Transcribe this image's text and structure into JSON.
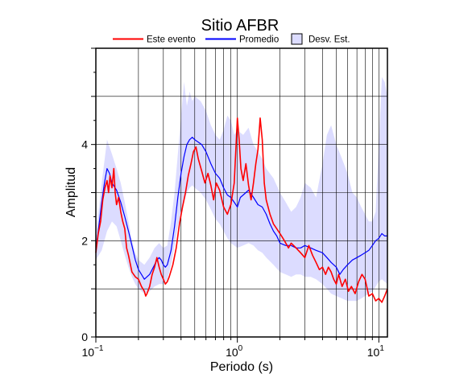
{
  "chart_data": {
    "type": "line",
    "title": "Sitio AFBR",
    "xlabel": "Periodo (s)",
    "ylabel": "Amplitud",
    "x_scale": "log",
    "xlim": [
      0.1,
      11.5
    ],
    "ylim": [
      0,
      6
    ],
    "grid": true,
    "legend_position": "top",
    "x_ticks": [
      {
        "value": 0.1,
        "base": "10",
        "exp": "−1"
      },
      {
        "value": 1,
        "base": "10",
        "exp": "0"
      },
      {
        "value": 10,
        "base": "10",
        "exp": "1"
      }
    ],
    "y_ticks": [
      {
        "value": 0,
        "label": "0"
      },
      {
        "value": 2,
        "label": "2"
      },
      {
        "value": 4,
        "label": "4"
      }
    ],
    "series": [
      {
        "name": "Este evento",
        "color": "#ff0000",
        "x": [
          0.1,
          0.104,
          0.108,
          0.112,
          0.116,
          0.12,
          0.123,
          0.126,
          0.13,
          0.134,
          0.137,
          0.14,
          0.145,
          0.15,
          0.155,
          0.16,
          0.165,
          0.17,
          0.18,
          0.19,
          0.2,
          0.21,
          0.22,
          0.225,
          0.23,
          0.24,
          0.25,
          0.26,
          0.27,
          0.28,
          0.29,
          0.3,
          0.31,
          0.32,
          0.33,
          0.35,
          0.37,
          0.39,
          0.41,
          0.43,
          0.45,
          0.47,
          0.49,
          0.51,
          0.53,
          0.56,
          0.59,
          0.62,
          0.65,
          0.68,
          0.71,
          0.75,
          0.8,
          0.85,
          0.9,
          0.95,
          1.0,
          1.03,
          1.06,
          1.1,
          1.15,
          1.2,
          1.25,
          1.3,
          1.35,
          1.4,
          1.45,
          1.5,
          1.55,
          1.6,
          1.7,
          1.8,
          1.9,
          2.0,
          2.1,
          2.2,
          2.3,
          2.4,
          2.6,
          2.8,
          3.0,
          3.2,
          3.4,
          3.6,
          3.8,
          4.0,
          4.2,
          4.4,
          4.6,
          4.8,
          5.0,
          5.2,
          5.5,
          5.8,
          6.1,
          6.4,
          6.8,
          7.2,
          7.6,
          8.0,
          8.5,
          9.0,
          9.5,
          10.0,
          10.5,
          11.0,
          11.5
        ],
        "values": [
          1.75,
          2.15,
          2.4,
          2.85,
          3.1,
          3.25,
          3.0,
          3.35,
          3.1,
          3.5,
          3.0,
          2.75,
          2.9,
          2.6,
          2.4,
          2.25,
          1.85,
          1.7,
          1.35,
          1.25,
          1.2,
          1.05,
          0.95,
          0.85,
          0.9,
          1.05,
          1.3,
          1.45,
          1.65,
          1.45,
          1.3,
          1.2,
          1.1,
          1.15,
          1.25,
          1.5,
          1.85,
          2.35,
          2.7,
          3.0,
          3.35,
          3.6,
          3.85,
          3.95,
          3.7,
          3.45,
          3.2,
          3.4,
          3.15,
          2.85,
          3.2,
          3.05,
          2.7,
          2.55,
          2.75,
          3.2,
          4.55,
          4.1,
          3.5,
          3.25,
          3.6,
          3.15,
          2.85,
          3.2,
          3.6,
          3.9,
          4.55,
          4.1,
          3.2,
          2.85,
          2.55,
          2.35,
          2.25,
          2.15,
          2.05,
          1.95,
          1.85,
          1.95,
          1.85,
          1.75,
          1.65,
          1.9,
          1.7,
          1.55,
          1.4,
          1.45,
          1.3,
          1.45,
          1.35,
          1.2,
          1.1,
          1.3,
          1.05,
          1.2,
          0.95,
          1.05,
          0.9,
          1.15,
          1.3,
          1.2,
          0.85,
          0.9,
          0.75,
          0.8,
          0.72,
          0.85,
          1.0
        ]
      },
      {
        "name": "Promedio",
        "color": "#0000ff",
        "x": [
          0.1,
          0.105,
          0.11,
          0.115,
          0.12,
          0.125,
          0.13,
          0.14,
          0.15,
          0.16,
          0.17,
          0.18,
          0.19,
          0.2,
          0.21,
          0.22,
          0.23,
          0.24,
          0.25,
          0.26,
          0.27,
          0.28,
          0.29,
          0.3,
          0.31,
          0.32,
          0.34,
          0.36,
          0.38,
          0.4,
          0.42,
          0.44,
          0.46,
          0.48,
          0.5,
          0.53,
          0.56,
          0.6,
          0.65,
          0.7,
          0.75,
          0.8,
          0.85,
          0.9,
          0.95,
          1.0,
          1.05,
          1.1,
          1.2,
          1.3,
          1.4,
          1.5,
          1.6,
          1.7,
          1.8,
          1.9,
          2.0,
          2.2,
          2.4,
          2.6,
          2.8,
          3.0,
          3.3,
          3.6,
          4.0,
          4.3,
          4.6,
          5.0,
          5.3,
          5.6,
          6.0,
          6.5,
          7.0,
          7.5,
          8.0,
          8.5,
          9.0,
          9.5,
          10.0,
          10.5,
          11.0,
          11.5
        ],
        "values": [
          1.8,
          2.3,
          2.8,
          3.2,
          3.5,
          3.4,
          3.2,
          3.05,
          2.8,
          2.5,
          2.2,
          1.9,
          1.6,
          1.4,
          1.3,
          1.2,
          1.25,
          1.3,
          1.4,
          1.5,
          1.6,
          1.65,
          1.6,
          1.5,
          1.45,
          1.5,
          1.8,
          2.3,
          2.9,
          3.4,
          3.75,
          4.0,
          4.1,
          4.15,
          4.1,
          4.05,
          4.0,
          3.85,
          3.6,
          3.4,
          3.3,
          3.1,
          2.95,
          2.9,
          2.8,
          2.7,
          2.9,
          2.95,
          3.05,
          2.9,
          2.75,
          2.7,
          2.55,
          2.35,
          2.2,
          2.1,
          1.95,
          1.9,
          1.9,
          1.85,
          1.85,
          1.9,
          1.85,
          1.8,
          1.75,
          1.65,
          1.55,
          1.45,
          1.3,
          1.4,
          1.5,
          1.6,
          1.65,
          1.7,
          1.75,
          1.8,
          1.9,
          2.0,
          2.05,
          2.15,
          2.1,
          2.1
        ]
      },
      {
        "name": "Desv. Est.",
        "color": "#dcdcff",
        "x": [
          0.1,
          0.11,
          0.12,
          0.13,
          0.14,
          0.15,
          0.16,
          0.17,
          0.18,
          0.19,
          0.2,
          0.22,
          0.24,
          0.26,
          0.28,
          0.3,
          0.32,
          0.34,
          0.36,
          0.38,
          0.4,
          0.42,
          0.44,
          0.46,
          0.48,
          0.5,
          0.55,
          0.6,
          0.65,
          0.7,
          0.75,
          0.8,
          0.85,
          0.9,
          0.95,
          1.0,
          1.1,
          1.2,
          1.3,
          1.4,
          1.5,
          1.6,
          1.8,
          2.0,
          2.2,
          2.4,
          2.6,
          2.8,
          3.0,
          3.3,
          3.6,
          4.0,
          4.3,
          4.6,
          5.0,
          5.5,
          6.0,
          6.5,
          7.0,
          7.5,
          8.0,
          8.5,
          9.0,
          9.5,
          10.0,
          10.5,
          11.0,
          11.5
        ],
        "upper": [
          2.1,
          3.2,
          4.1,
          3.8,
          3.5,
          3.2,
          2.8,
          2.4,
          2.0,
          1.75,
          1.6,
          1.5,
          1.65,
          1.85,
          1.95,
          1.85,
          1.9,
          2.4,
          3.0,
          3.8,
          4.6,
          5.3,
          4.8,
          5.1,
          4.9,
          5.0,
          4.9,
          4.7,
          4.4,
          4.2,
          4.1,
          4.3,
          4.6,
          4.5,
          4.2,
          4.3,
          4.2,
          4.35,
          4.0,
          3.85,
          3.7,
          3.5,
          3.3,
          3.0,
          2.8,
          2.6,
          2.7,
          2.9,
          3.2,
          3.1,
          2.9,
          3.6,
          4.2,
          4.4,
          4.0,
          3.7,
          3.4,
          3.0,
          2.9,
          2.7,
          2.55,
          2.4,
          2.4,
          2.6,
          4.0,
          5.4,
          5.3,
          5.0
        ],
        "lower": [
          1.6,
          1.8,
          2.2,
          2.4,
          2.3,
          2.0,
          1.7,
          1.45,
          1.25,
          1.1,
          1.0,
          0.9,
          0.95,
          1.05,
          1.1,
          1.1,
          1.2,
          1.5,
          1.9,
          2.3,
          2.6,
          2.8,
          3.0,
          3.1,
          3.15,
          3.1,
          3.0,
          2.85,
          2.65,
          2.45,
          2.35,
          2.2,
          2.05,
          1.95,
          1.9,
          1.85,
          1.9,
          1.95,
          1.9,
          1.8,
          1.75,
          1.65,
          1.5,
          1.35,
          1.3,
          1.25,
          1.3,
          1.3,
          1.25,
          1.25,
          1.2,
          1.1,
          1.0,
          0.9,
          0.85,
          0.8,
          0.75,
          0.75,
          0.75,
          0.8,
          0.85,
          0.9,
          0.95,
          1.05,
          1.15,
          1.2,
          1.15,
          1.1
        ]
      }
    ]
  }
}
